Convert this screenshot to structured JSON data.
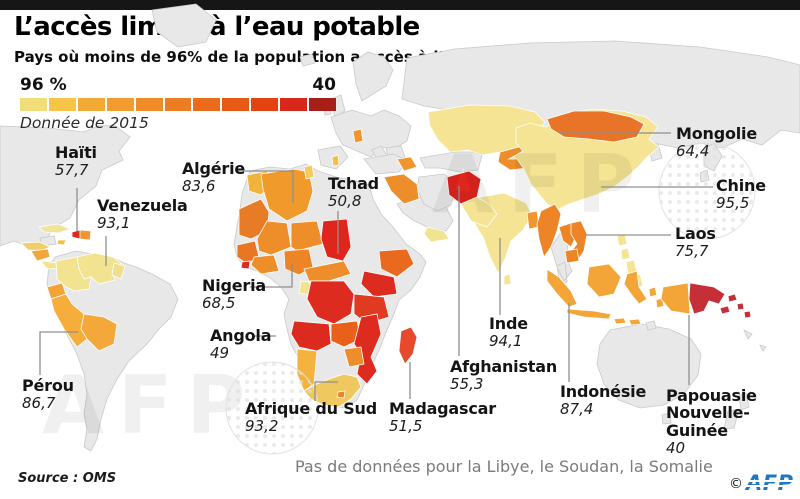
{
  "header": {
    "title": "L’accès limité à l’eau potable",
    "subtitle": "Pays où moins de 96% de la population a accès à l’eau potable"
  },
  "legend": {
    "max_label": "96 %",
    "min_label": "40",
    "note": "Donnée de 2015",
    "stops": [
      "#F2DE79",
      "#F6C449",
      "#F3AA35",
      "#F29B2E",
      "#EF8C28",
      "#ED7D22",
      "#EA6B1C",
      "#E75A16",
      "#E24310",
      "#D8281A",
      "#A81E18"
    ]
  },
  "watermark": {
    "text": "AFP"
  },
  "footer": {
    "no_data_note": "Pas de données pour la Libye, le Soudan, la Somalie",
    "source": "Source : OMS",
    "copyright_symbol": "©",
    "agency": "AFP",
    "agency_color": "#1E79C2"
  },
  "chart_data": {
    "type": "choropleth_map",
    "title": "L’accès limité à l’eau potable",
    "subtitle": "Pays où moins de 96% de la population a accès à l’eau potable",
    "year_note": "Donnée de 2015",
    "value_unit": "% de la population ayant accès à l’eau potable",
    "scale": {
      "start": 96,
      "end": 40,
      "start_label": "96 %",
      "end_label": "40"
    },
    "no_data_countries": [
      "Libye",
      "Soudan",
      "Somalie"
    ],
    "source": "OMS",
    "countries": [
      {
        "name": "Haïti",
        "value": 57.7,
        "value_label": "57,7"
      },
      {
        "name": "Venezuela",
        "value": 93.1,
        "value_label": "93,1"
      },
      {
        "name": "Pérou",
        "value": 86.7,
        "value_label": "86,7"
      },
      {
        "name": "Algérie",
        "value": 83.6,
        "value_label": "83,6"
      },
      {
        "name": "Tchad",
        "value": 50.8,
        "value_label": "50,8"
      },
      {
        "name": "Nigeria",
        "value": 68.5,
        "value_label": "68,5"
      },
      {
        "name": "Angola",
        "value": 49,
        "value_label": "49"
      },
      {
        "name": "Afrique du Sud",
        "value": 93.2,
        "value_label": "93,2"
      },
      {
        "name": "Madagascar",
        "value": 51.5,
        "value_label": "51,5"
      },
      {
        "name": "Afghanistan",
        "value": 55.3,
        "value_label": "55,3"
      },
      {
        "name": "Inde",
        "value": 94.1,
        "value_label": "94,1"
      },
      {
        "name": "Indonésie",
        "value": 87.4,
        "value_label": "87,4"
      },
      {
        "name": "Papouasie Nouvelle-Guinée",
        "value": 40,
        "value_label": "40"
      },
      {
        "name": "Mongolie",
        "value": 64.4,
        "value_label": "64,4"
      },
      {
        "name": "Chine",
        "value": 95.5,
        "value_label": "95,5"
      },
      {
        "name": "Laos",
        "value": 75.7,
        "value_label": "75,7"
      }
    ]
  },
  "map": {
    "colors": {
      "land": "#E8E8E8",
      "land_border": "#C9C9C9",
      "ocean": "#FFFFFF",
      "leader_line": "#8F8F8F"
    },
    "fills": {
      "cuba": "#F0E49C",
      "haiti": "#DE2B1F",
      "dominican": "#F0952F",
      "jamaica": "#F3C043",
      "guatemala_honduras": "#F2CE6B",
      "nicaragua": "#F3A73A",
      "costa_panama": "#F2E391",
      "venezuela": "#F2E391",
      "colombia": "#F2E391",
      "guyana": "#F0DE8A",
      "ecuador": "#F4A437",
      "peru": "#F6AD3C",
      "bolivia": "#F4A839",
      "morocco": "#F2B33C",
      "mauritania": "#E87C26",
      "algeria": "#F09A2C",
      "tunisia": "#F3CB5A",
      "mali": "#EE8E2A",
      "niger": "#EE8E2A",
      "chad": "#E0251D",
      "senegal_region": "#E97623",
      "sierra": "#DE2B1F",
      "ivory_ghana": "#EE8E2A",
      "nigeria": "#ED8426",
      "cameroon_car": "#EE8E2A",
      "gabon": "#F2E391",
      "ethiopia": "#E96A1F",
      "kenya_uganda": "#DE2B1F",
      "drc": "#DE2B1F",
      "tanzania": "#E03A20",
      "angola": "#DC2A1E",
      "zambia": "#E8601A",
      "mozambique": "#DE2B1F",
      "zimbabwe": "#EE8E2A",
      "namibia": "#F4B33F",
      "south_africa": "#EFC95F",
      "lesotho": "#ED8426",
      "madagascar": "#E6492B",
      "moldova": "#F0952F",
      "albania": "#F3C043",
      "iraq_syria": "#EE8E2A",
      "caucasus": "#F0952F",
      "yemen": "#F2E391",
      "kazakhstan": "#F4E493",
      "kyrgyz_tajik": "#EE8E2A",
      "afghanistan": "#E0251D",
      "pakistan": "#F4E493",
      "india": "#F4E493",
      "sri_lanka": "#F4E493",
      "bangladesh": "#F0952F",
      "china": "#F4E493",
      "mongolia": "#E97326",
      "myanmar": "#ED8426",
      "laos": "#ED8426",
      "vietnam": "#ED8426",
      "cambodia": "#ED8426",
      "philippines": "#F4E493",
      "indonesia": "#F3A637",
      "west_papua": "#F3A637",
      "png": "#C53038",
      "solomon": "#C53038"
    }
  }
}
